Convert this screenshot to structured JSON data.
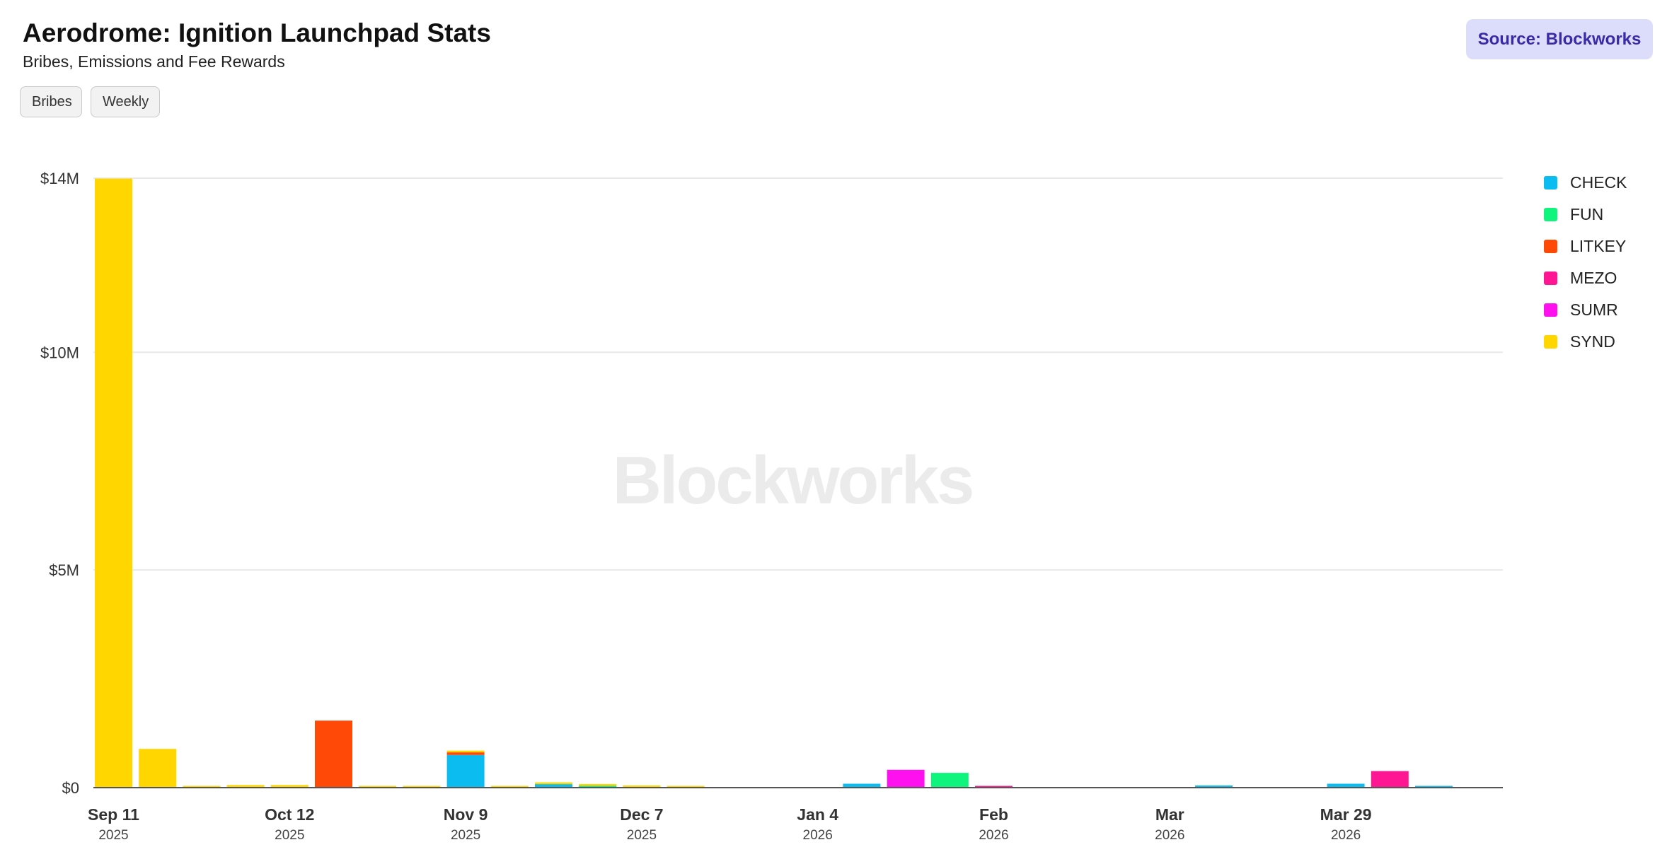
{
  "header": {
    "title": "Aerodrome: Ignition Launchpad Stats",
    "subtitle": "Bribes, Emissions and Fee Rewards",
    "source": "Source: Blockworks"
  },
  "controls": {
    "metric_label": "Bribes",
    "period_label": "Weekly"
  },
  "watermark": "Blockworks",
  "colors": {
    "CHECK": "#0bbcf0",
    "FUN": "#0ef47c",
    "LITKEY": "#ff4a07",
    "MEZO": "#ff1692",
    "SUMR": "#ff10ee",
    "SYND": "#ffd600",
    "grid": "#e8e8e8",
    "axis": "#555555"
  },
  "chart_data": {
    "type": "bar",
    "stacked": true,
    "title": "Aerodrome: Ignition Launchpad Stats",
    "subtitle": "Bribes, Emissions and Fee Rewards",
    "xlabel": "",
    "ylabel": "",
    "ylim": [
      0,
      14000000
    ],
    "y_ticks": [
      {
        "value": 0,
        "label": "$0"
      },
      {
        "value": 5000000,
        "label": "$5M"
      },
      {
        "value": 10000000,
        "label": "$10M"
      },
      {
        "value": 14000000,
        "label": "$14M"
      }
    ],
    "x_ticks": [
      {
        "index": 0,
        "label": "Sep 11",
        "year": "2025"
      },
      {
        "index": 4,
        "label": "Oct 12",
        "year": "2025"
      },
      {
        "index": 8,
        "label": "Nov 9",
        "year": "2025"
      },
      {
        "index": 12,
        "label": "Dec 7",
        "year": "2025"
      },
      {
        "index": 16,
        "label": "Jan 4",
        "year": "2026"
      },
      {
        "index": 20,
        "label": "Feb",
        "year": "2026"
      },
      {
        "index": 24,
        "label": "Mar",
        "year": "2026"
      },
      {
        "index": 28,
        "label": "Mar 29",
        "year": "2026"
      }
    ],
    "categories": [
      "w0",
      "w1",
      "w2",
      "w3",
      "w4",
      "w5",
      "w6",
      "w7",
      "w8",
      "w9",
      "w10",
      "w11",
      "w12",
      "w13",
      "w14",
      "w15",
      "w16",
      "w17",
      "w18",
      "w19",
      "w20",
      "w21",
      "w22",
      "w23",
      "w24",
      "w25",
      "w26",
      "w27",
      "w28",
      "w29",
      "w30"
    ],
    "series": [
      {
        "name": "CHECK",
        "values": [
          0,
          0,
          0,
          0,
          0,
          0,
          0,
          0,
          750000,
          0,
          80000,
          20000,
          10000,
          0,
          0,
          0,
          0,
          90000,
          0,
          0,
          0,
          0,
          0,
          0,
          0,
          50000,
          0,
          0,
          90000,
          0,
          20000
        ]
      },
      {
        "name": "FUN",
        "values": [
          0,
          0,
          0,
          0,
          0,
          0,
          0,
          0,
          0,
          0,
          0,
          20000,
          0,
          0,
          0,
          0,
          0,
          0,
          0,
          340000,
          0,
          0,
          0,
          0,
          0,
          0,
          0,
          0,
          0,
          0,
          0
        ]
      },
      {
        "name": "LITKEY",
        "values": [
          0,
          0,
          0,
          0,
          0,
          1540000,
          0,
          0,
          60000,
          0,
          0,
          0,
          0,
          0,
          0,
          0,
          0,
          0,
          0,
          0,
          0,
          0,
          0,
          0,
          0,
          0,
          0,
          0,
          0,
          0,
          0
        ]
      },
      {
        "name": "MEZO",
        "values": [
          0,
          0,
          0,
          0,
          0,
          0,
          0,
          0,
          0,
          0,
          0,
          0,
          0,
          0,
          0,
          0,
          0,
          0,
          0,
          0,
          20000,
          0,
          0,
          0,
          0,
          0,
          0,
          0,
          0,
          380000,
          0
        ]
      },
      {
        "name": "SUMR",
        "values": [
          0,
          0,
          0,
          0,
          0,
          0,
          0,
          0,
          0,
          0,
          0,
          0,
          0,
          0,
          0,
          0,
          0,
          0,
          410000,
          0,
          0,
          0,
          0,
          0,
          0,
          0,
          0,
          0,
          0,
          0,
          0
        ]
      },
      {
        "name": "SYND",
        "values": [
          13990000,
          890000,
          40000,
          60000,
          60000,
          0,
          40000,
          10000,
          10000,
          10000,
          40000,
          10000,
          10000,
          10000,
          0,
          0,
          0,
          0,
          0,
          0,
          0,
          0,
          0,
          0,
          0,
          0,
          0,
          0,
          0,
          0,
          0
        ]
      }
    ],
    "legend_position": "right",
    "grid": true
  }
}
